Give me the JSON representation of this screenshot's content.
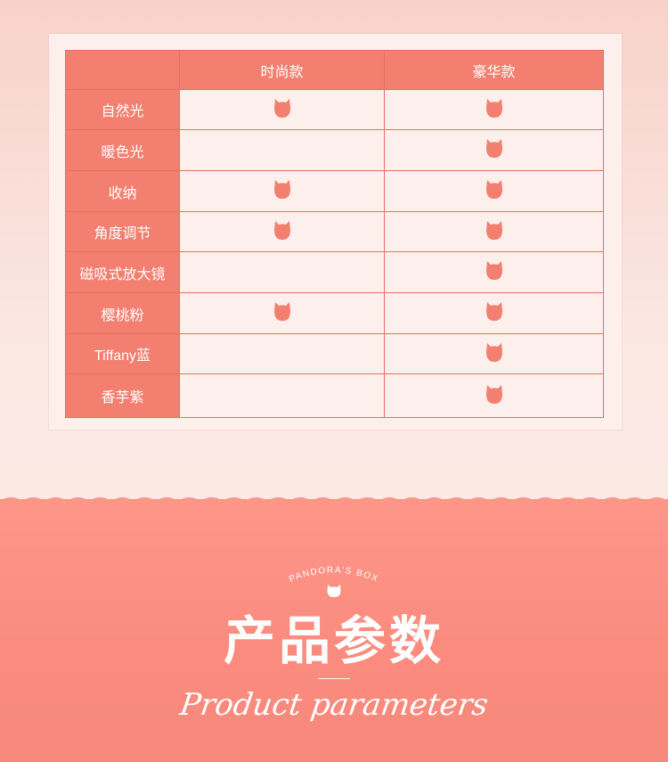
{
  "table": {
    "headers": [
      "",
      "时尚款",
      "豪华款"
    ],
    "rows": [
      {
        "feature": "自然光",
        "fashion": true,
        "luxury": true
      },
      {
        "feature": "暖色光",
        "fashion": false,
        "luxury": true
      },
      {
        "feature": "收纳",
        "fashion": true,
        "luxury": true
      },
      {
        "feature": "角度调节",
        "fashion": true,
        "luxury": true
      },
      {
        "feature": "磁吸式放大镜",
        "fashion": false,
        "luxury": true
      },
      {
        "feature": "樱桃粉",
        "fashion": true,
        "luxury": true
      },
      {
        "feature": "Tiffany蓝",
        "fashion": false,
        "luxury": true
      },
      {
        "feature": "香芋紫",
        "fashion": false,
        "luxury": true
      }
    ],
    "mark_icon": "cat-head-icon"
  },
  "section": {
    "brand": "PANDORA'S BOX",
    "brand_icon": "cat-head-icon",
    "title_cn": "产品参数",
    "title_en": "Product parameters"
  },
  "colors": {
    "accent": "#f27f70",
    "cell_bg": "#fdf0ec",
    "bottom_bg": "#fa8b7e"
  }
}
